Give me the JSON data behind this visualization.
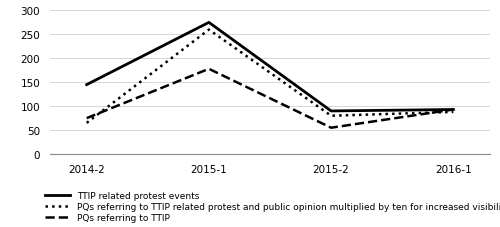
{
  "x_labels": [
    "2014-2",
    "2015-1",
    "2015-2",
    "2016-1"
  ],
  "x_values": [
    0,
    1,
    2,
    3
  ],
  "series": {
    "protest_events": {
      "values": [
        145,
        275,
        90,
        93
      ],
      "label": "TTIP related protest events",
      "linestyle": "solid",
      "linewidth": 2.0,
      "color": "#000000"
    },
    "pqs_x10": {
      "values": [
        65,
        260,
        80,
        88
      ],
      "label": "PQs referring to TTIP related protest and public opinion multiplied by ten for increased visibility",
      "linestyle": "dotted",
      "linewidth": 1.8,
      "color": "#000000"
    },
    "pqs_ttip": {
      "values": [
        75,
        178,
        55,
        93
      ],
      "label": "PQs referring to TTIP",
      "linestyle": "dashed",
      "linewidth": 1.8,
      "color": "#000000"
    }
  },
  "ylim": [
    0,
    300
  ],
  "yticks": [
    0,
    50,
    100,
    150,
    200,
    250,
    300
  ],
  "background_color": "#ffffff",
  "legend_fontsize": 6.5,
  "tick_fontsize": 7.5
}
